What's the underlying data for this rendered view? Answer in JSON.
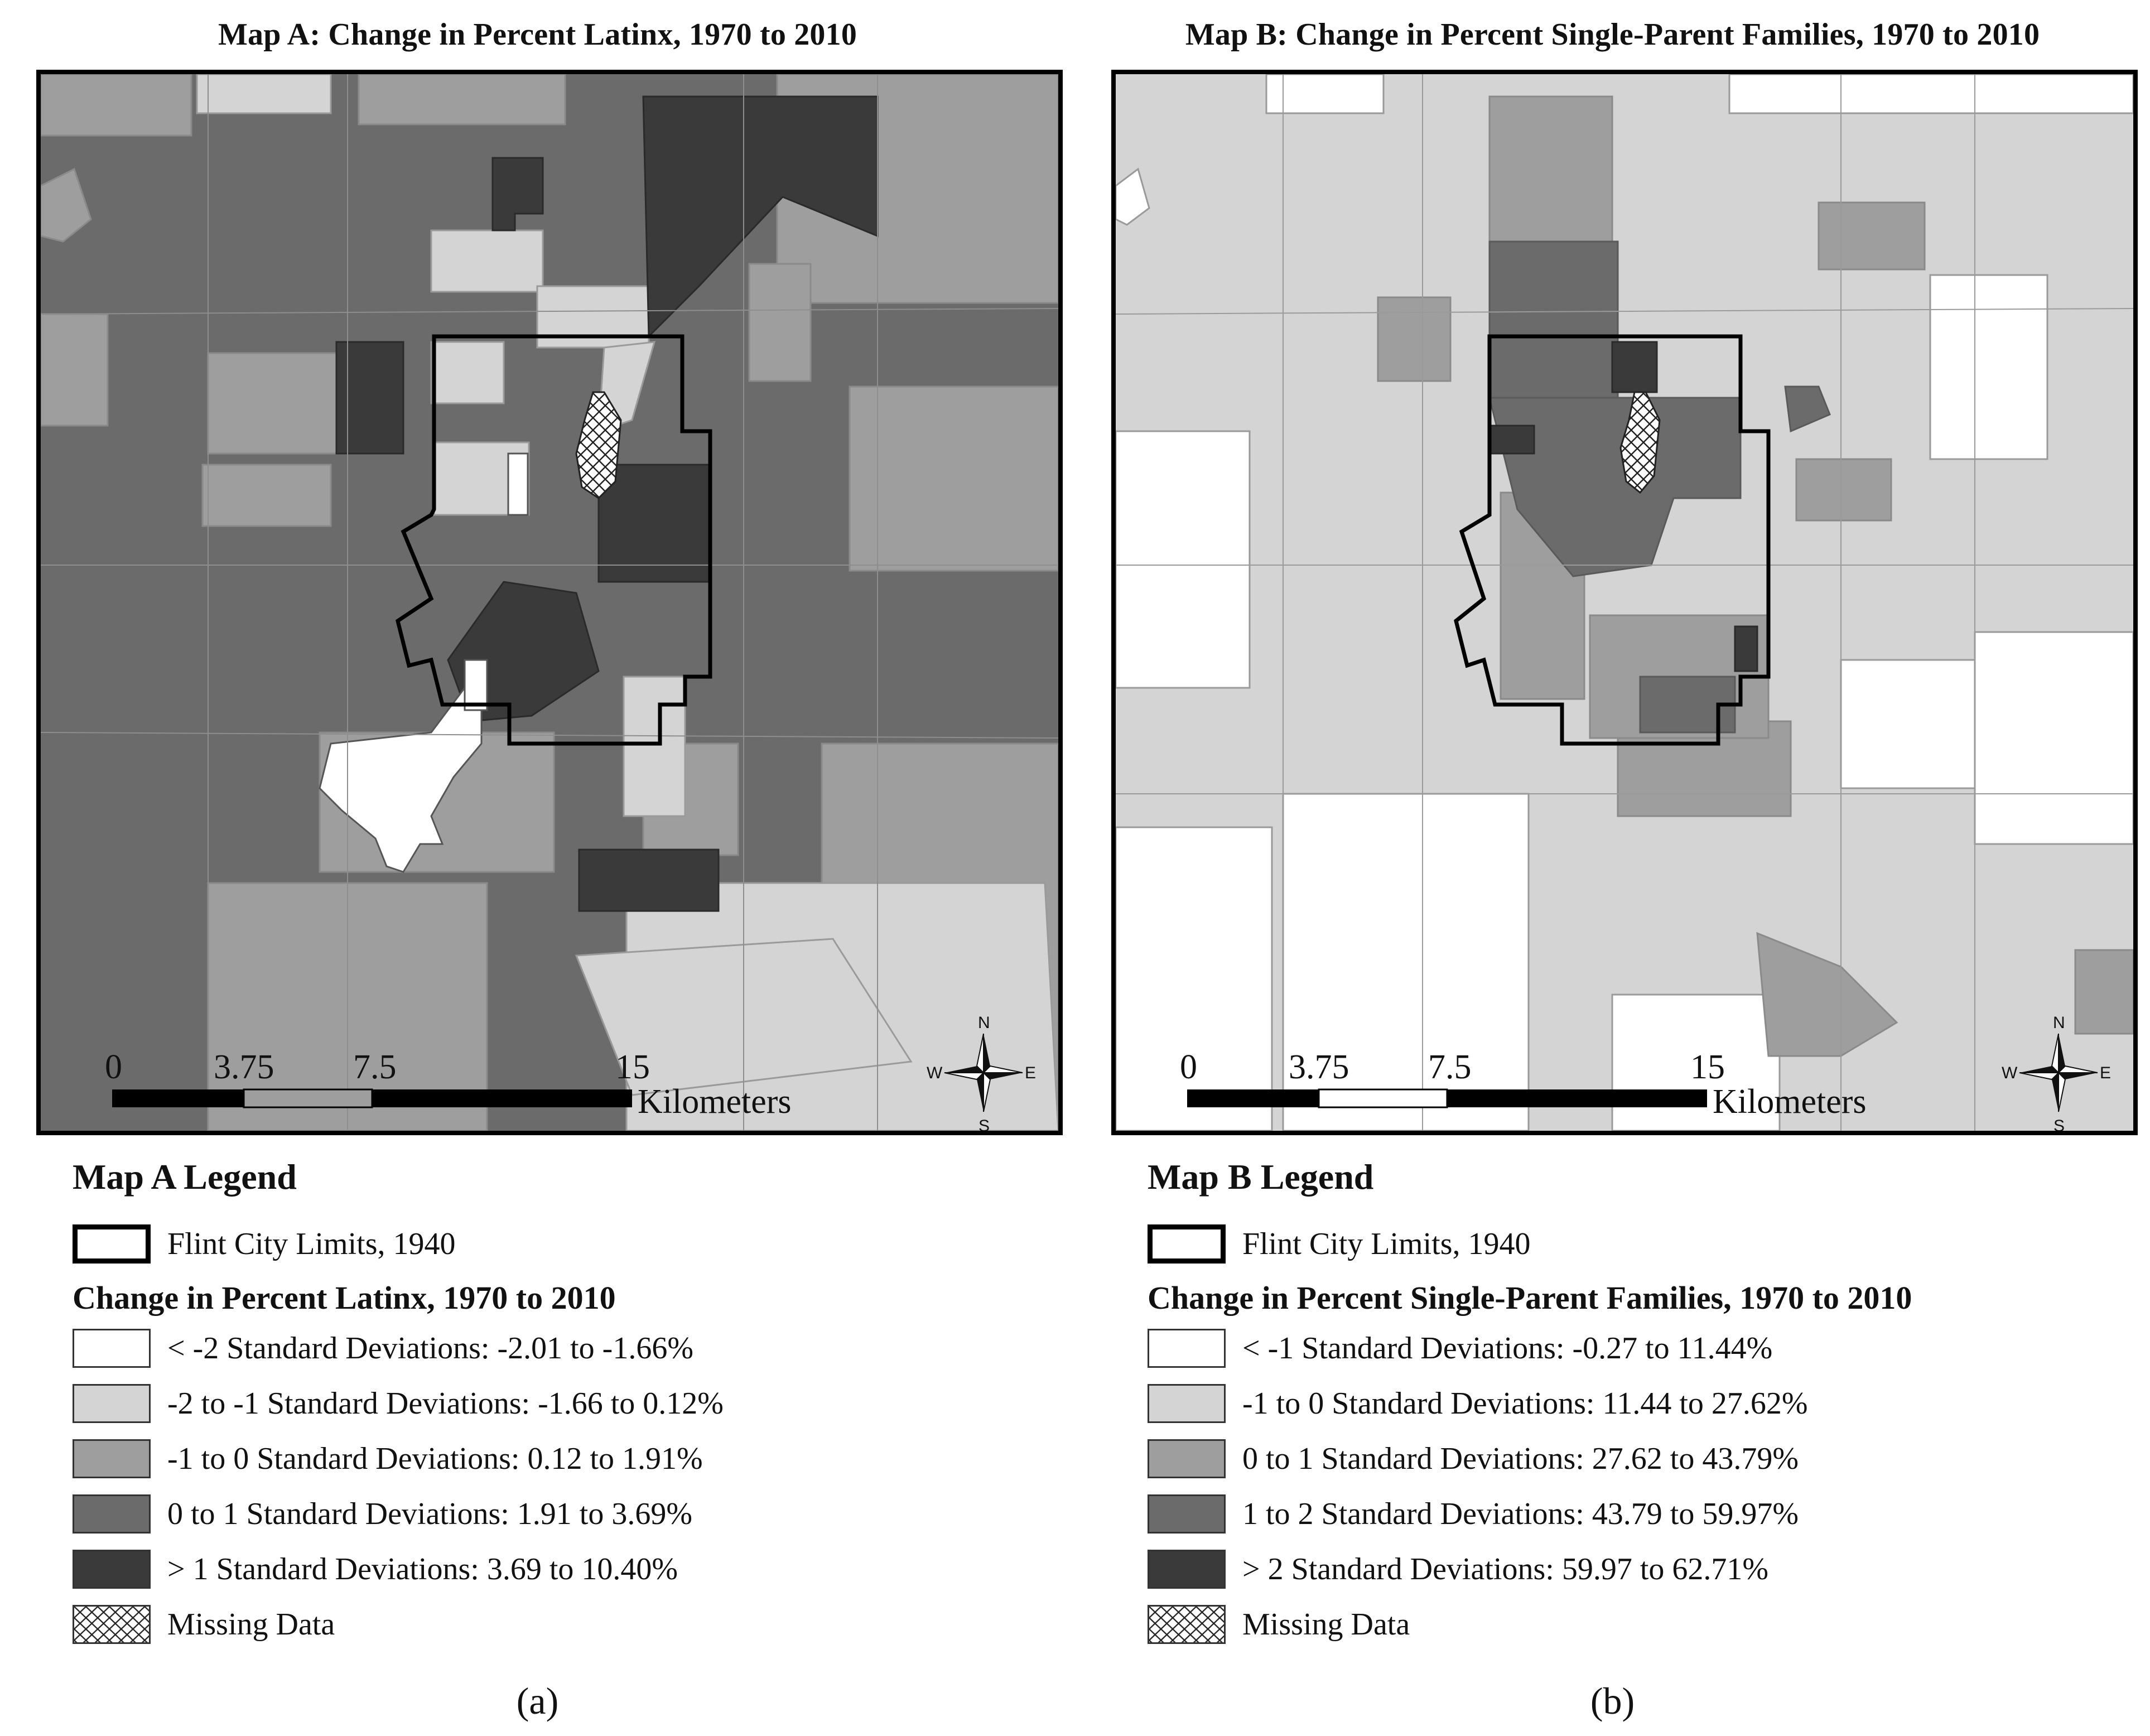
{
  "map_a": {
    "title": "Map A: Change in Percent Latinx, 1970 to 2010",
    "scale_labels": [
      "0",
      "3.75",
      "7.5",
      "15"
    ],
    "scale_unit": "Kilometers",
    "north_arrow": {
      "n": "N",
      "s": "S",
      "e": "E",
      "w": "W"
    },
    "legend": {
      "title": "Map A Legend",
      "boundary_label": "Flint City Limits, 1940",
      "subtitle": "Change in Percent Latinx, 1970 to 2010",
      "classes": [
        {
          "label": "< -2 Standard Deviations: -2.01 to -1.66%",
          "color": "#ffffff"
        },
        {
          "label": "-2 to -1 Standard Deviations: -1.66 to 0.12%",
          "color": "#d4d4d4"
        },
        {
          "label": "-1 to 0 Standard Deviations: 0.12 to 1.91%",
          "color": "#9e9e9e"
        },
        {
          "label": "0 to 1 Standard Deviations: 1.91 to 3.69%",
          "color": "#6b6b6b"
        },
        {
          "label": "> 1 Standard Deviations: 3.69 to 10.40%",
          "color": "#3a3a3a"
        }
      ],
      "missing_label": "Missing Data"
    },
    "caption_letter": "a"
  },
  "map_b": {
    "title": "Map B: Change in Percent Single-Parent Families, 1970 to 2010",
    "scale_labels": [
      "0",
      "3.75",
      "7.5",
      "15"
    ],
    "scale_unit": "Kilometers",
    "north_arrow": {
      "n": "N",
      "s": "S",
      "e": "E",
      "w": "W"
    },
    "legend": {
      "title": "Map B Legend",
      "boundary_label": "Flint City Limits, 1940",
      "subtitle": "Change in Percent Single-Parent Families, 1970 to 2010",
      "classes": [
        {
          "label": "< -1 Standard Deviations: -0.27 to 11.44%",
          "color": "#ffffff"
        },
        {
          "label": "-1 to 0 Standard Deviations: 11.44 to 27.62%",
          "color": "#d4d4d4"
        },
        {
          "label": "0 to 1 Standard Deviations: 27.62 to 43.79%",
          "color": "#9e9e9e"
        },
        {
          "label": "1 to 2 Standard Deviations: 43.79 to 59.97%",
          "color": "#6b6b6b"
        },
        {
          "label": "> 2 Standard Deviations: 59.97 to 62.71%",
          "color": "#3a3a3a"
        }
      ],
      "missing_label": "Missing Data"
    },
    "caption_letter": "b"
  }
}
